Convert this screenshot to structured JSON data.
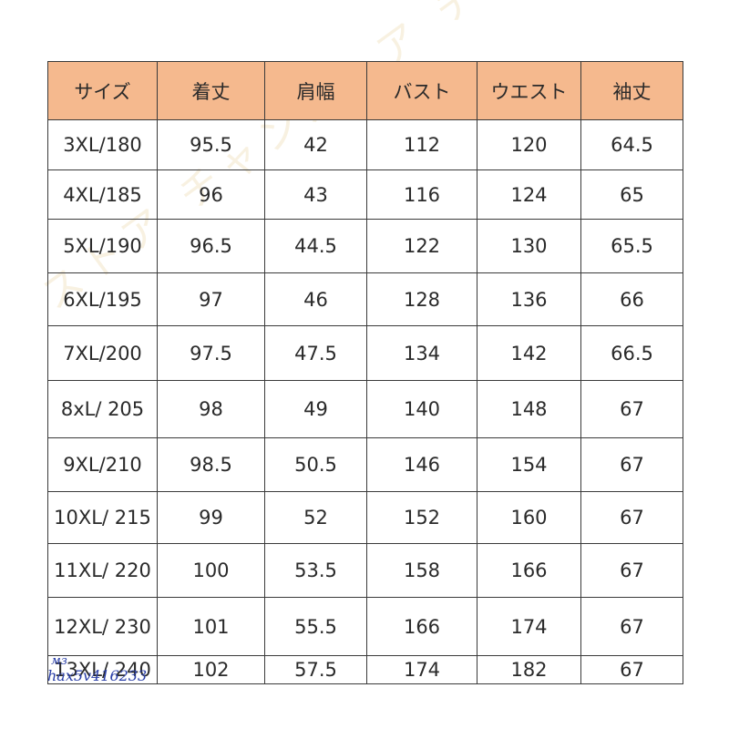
{
  "table": {
    "header_color": "#f5b98e",
    "headers": [
      "サイズ",
      "着丈",
      "肩幅",
      "バスト",
      "ウエスト",
      "袖丈"
    ],
    "rows": [
      [
        "3XL/180",
        "95.5",
        "42",
        "112",
        "120",
        "64.5"
      ],
      [
        "4XL/185",
        "96",
        "43",
        "116",
        "124",
        "65"
      ],
      [
        "5XL/190",
        "96.5",
        "44.5",
        "122",
        "130",
        "65.5"
      ],
      [
        "6XL/195",
        "97",
        "46",
        "128",
        "136",
        "66"
      ],
      [
        "7XL/200",
        "97.5",
        "47.5",
        "134",
        "142",
        "66.5"
      ],
      [
        "8xL/ 205",
        "98",
        "49",
        "140",
        "148",
        "67"
      ],
      [
        "9XL/210",
        "98.5",
        "50.5",
        "146",
        "154",
        "67"
      ],
      [
        "10XL/ 215",
        "99",
        "52",
        "152",
        "160",
        "67"
      ],
      [
        "11XL/ 220",
        "100",
        "53.5",
        "158",
        "166",
        "67"
      ],
      [
        "12XL/ 230",
        "101",
        "55.5",
        "166",
        "174",
        "67"
      ],
      [
        "13XL/ 240",
        "102",
        "57.5",
        "174",
        "182",
        "67"
      ]
    ]
  },
  "watermark": {
    "text": "ストア チャンストア チャンストア チャ",
    "id_line1": "мз",
    "id_line2": "hax5v416233"
  }
}
